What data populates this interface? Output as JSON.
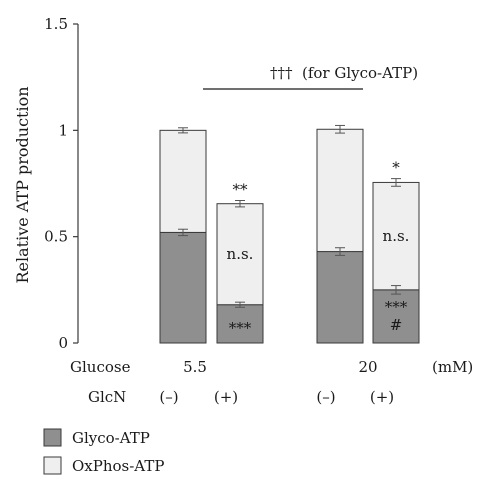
{
  "chart_data": {
    "type": "bar",
    "stacked": true,
    "ylabel": "Relative ATP production",
    "ylim": [
      0,
      1.5
    ],
    "yticks": [
      "0",
      "0.5",
      "1",
      "1.5"
    ],
    "yticks_values": [
      0,
      0.5,
      1,
      1.5
    ],
    "grid": false,
    "legend_position": "bottom-left",
    "colors": {
      "glyco": "#8f8f8f",
      "oxphos": "#efefef",
      "stroke": "#3a3a3a"
    },
    "series": [
      {
        "name": "Glyco-ATP",
        "values": [
          0.52,
          0.18,
          0.43,
          0.25
        ],
        "errors": [
          0.015,
          0.012,
          0.018,
          0.02
        ]
      },
      {
        "name": "OxPhos-ATP",
        "values": [
          0.48,
          0.475,
          0.575,
          0.505
        ],
        "errors": [
          0.012,
          0.015,
          0.018,
          0.018
        ]
      }
    ],
    "conditions": {
      "glucose_label": "Glucose",
      "glucose_values": [
        "5.5",
        "20"
      ],
      "glucose_unit": "(mM)",
      "glcn_label": "GlcN",
      "glcn_values": [
        "(–)",
        "(+)",
        "(–)",
        "(+)"
      ]
    },
    "annotations": {
      "bracket": "†††  (for Glyco-ATP)",
      "top_marks": [
        "",
        "**",
        "",
        "*"
      ],
      "oxphos_marks": [
        "",
        "n.s.",
        "",
        "n.s."
      ],
      "glyco_marks": [
        "",
        "***",
        "",
        "***"
      ],
      "glyco_marks_2": [
        "",
        "",
        "",
        "#"
      ]
    }
  }
}
